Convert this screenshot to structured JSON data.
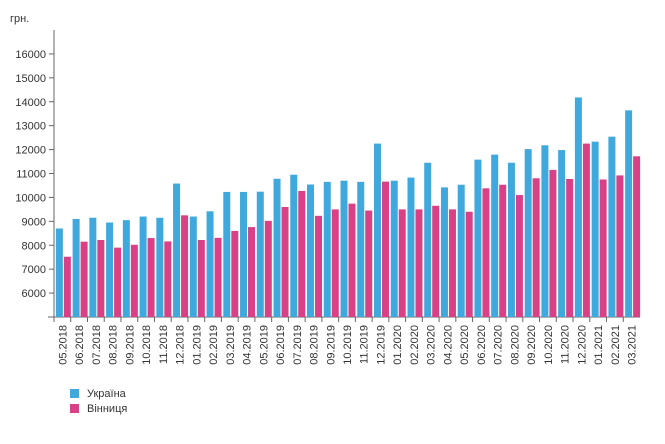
{
  "chart_data": {
    "type": "bar",
    "ylabel": "грн.",
    "ylim": [
      5000,
      17000
    ],
    "yticks": [
      6000,
      7000,
      8000,
      9000,
      10000,
      11000,
      12000,
      13000,
      14000,
      15000,
      16000
    ],
    "grid": false,
    "legend_position": "bottom-left",
    "categories": [
      "05.2018",
      "06.2018",
      "07.2018",
      "08.2018",
      "09.2018",
      "10.2018",
      "11.2018",
      "12.2018",
      "01.2019",
      "02.2019",
      "03.2019",
      "04.2019",
      "05.2019",
      "06.2019",
      "07.2019",
      "08.2019",
      "09.2019",
      "10.2019",
      "11.2019",
      "12.2019",
      "01.2020",
      "02.2020",
      "03.2020",
      "04.2020",
      "05.2020",
      "06.2020",
      "07.2020",
      "08.2020",
      "09.2020",
      "10.2020",
      "11.2020",
      "12.2020",
      "01.2021",
      "02.2021",
      "03.2021"
    ],
    "series": [
      {
        "name": "Україна",
        "color": "#3fa9de",
        "values": [
          8700,
          9100,
          9150,
          8950,
          9050,
          9200,
          9150,
          10580,
          9200,
          9420,
          10230,
          10230,
          10240,
          10780,
          10950,
          10540,
          10650,
          10700,
          10650,
          12250,
          10700,
          10830,
          11450,
          10420,
          10530,
          11580,
          11790,
          11450,
          12020,
          12180,
          11980,
          14180,
          12330,
          12540,
          13640
        ]
      },
      {
        "name": "Вінниця",
        "color": "#d94086",
        "values": [
          7520,
          8150,
          8220,
          7900,
          8020,
          8300,
          8160,
          9250,
          8220,
          8310,
          8600,
          8760,
          9020,
          9600,
          10270,
          9230,
          9500,
          9740,
          9450,
          10660,
          9500,
          9500,
          9650,
          9500,
          9400,
          10380,
          10530,
          10100,
          10800,
          11150,
          10770,
          12250,
          10750,
          10920,
          11720
        ]
      }
    ]
  }
}
